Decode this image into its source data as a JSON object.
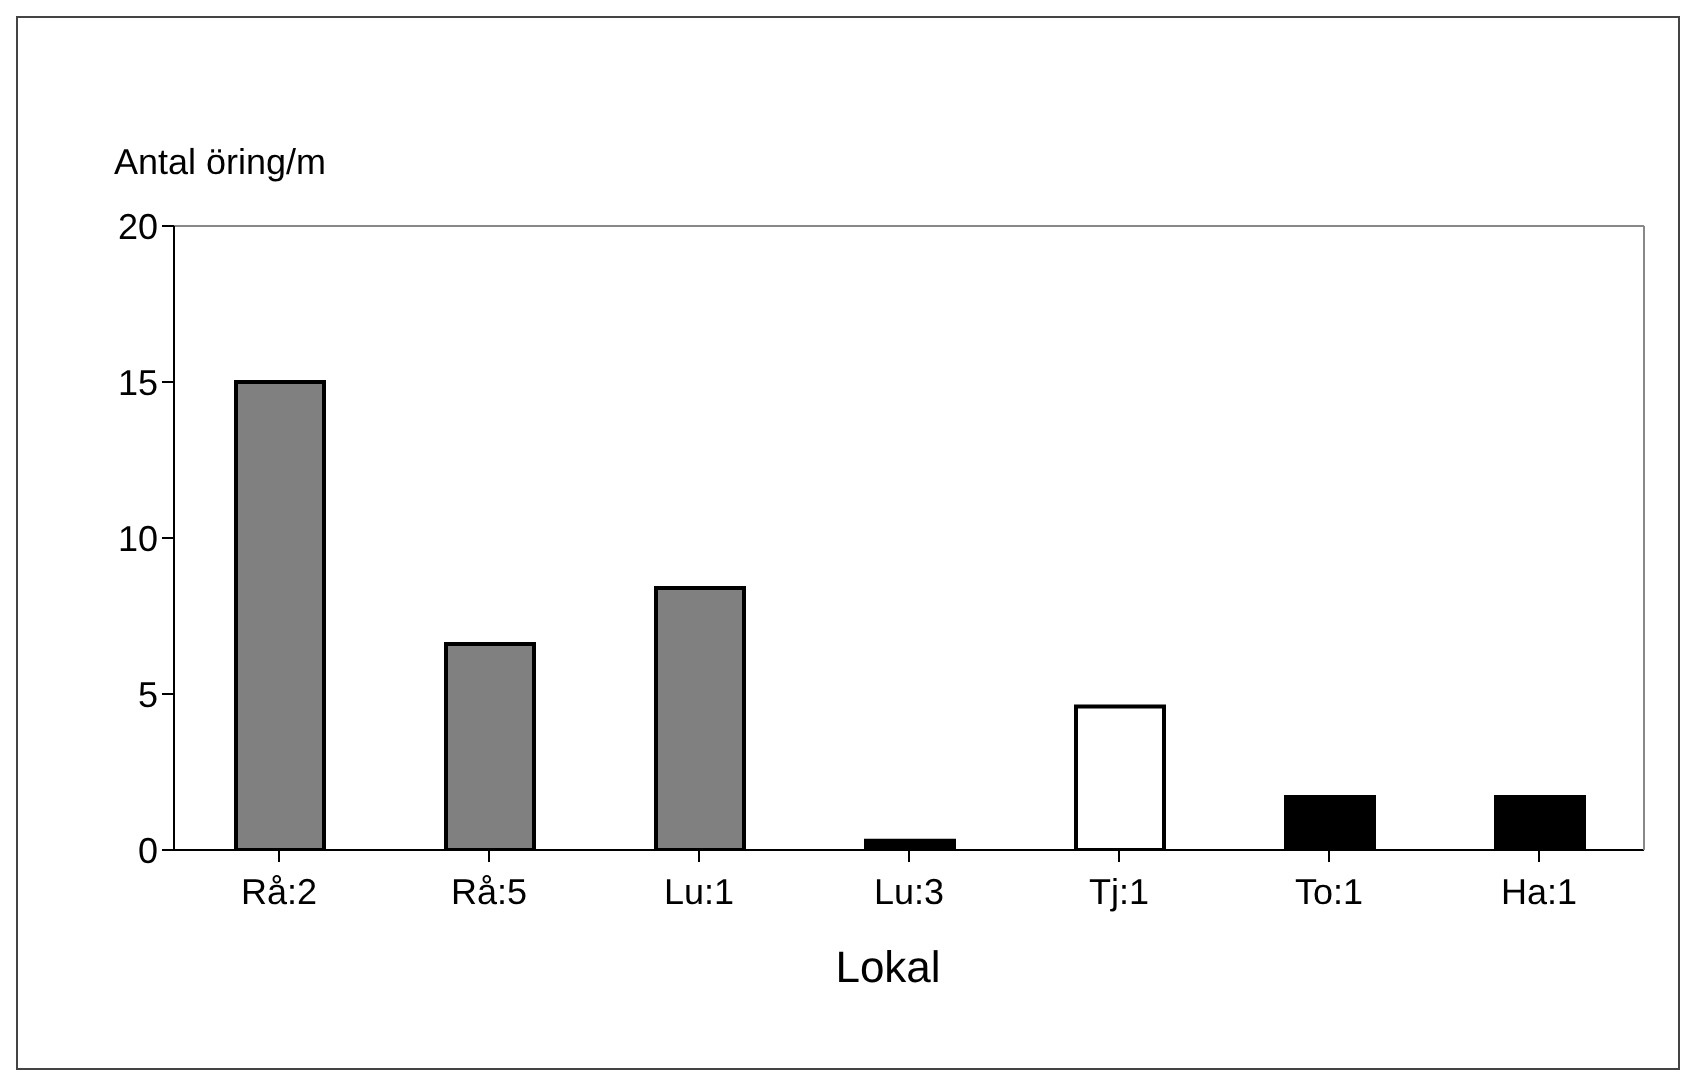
{
  "chart_data": {
    "type": "bar",
    "ylabel": "Antal öring/m",
    "xlabel": "Lokal",
    "categories": [
      "Rå:2",
      "Rå:5",
      "Lu:1",
      "Lu:3",
      "Tj:1",
      "To:1",
      "Ha:1"
    ],
    "values": [
      15,
      6.6,
      8.4,
      0.3,
      4.6,
      1.7,
      1.7
    ],
    "colors": [
      "#808080",
      "#808080",
      "#808080",
      "#000000",
      "#ffffff",
      "#000000",
      "#000000"
    ],
    "ylim": [
      0,
      20
    ],
    "yticks": [
      0,
      5,
      10,
      15,
      20
    ],
    "grid": false
  }
}
